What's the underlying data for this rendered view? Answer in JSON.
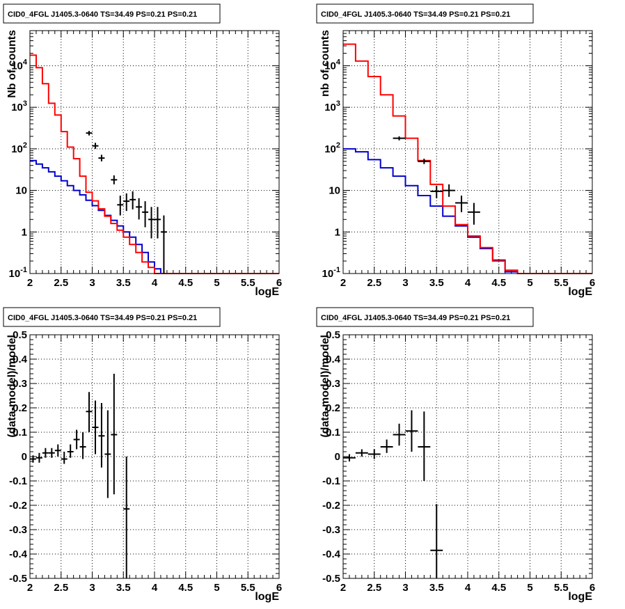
{
  "chart_data": [
    {
      "type": "histogram",
      "title": "CID0_4FGL J1405.3-0640 TS=34.49 PS=0.21 PS=0.21",
      "xlabel": "logE",
      "ylabel": "Nb of counts",
      "xlim": [
        2,
        6
      ],
      "ylim": [
        0.1,
        70000
      ],
      "yscale": "log",
      "grid": true,
      "x_ticks": [
        "2",
        "2.5",
        "3",
        "3.5",
        "4",
        "4.5",
        "5",
        "5.5",
        "6"
      ],
      "y_ticks": [
        "10^-1",
        "1",
        "10",
        "10^2",
        "10^3",
        "10^4"
      ],
      "colors": {
        "data": "#000000",
        "total_model": "#ff0000",
        "background_model": "#0000cc"
      },
      "bin_edges": [
        2.0,
        2.1,
        2.2,
        2.3,
        2.4,
        2.5,
        2.6,
        2.7,
        2.8,
        2.9,
        3.0,
        3.1,
        3.2,
        3.3,
        3.4,
        3.5,
        3.6,
        3.7,
        3.8,
        3.9,
        4.0,
        4.1,
        4.2,
        4.3,
        4.4,
        4.5,
        4.6,
        4.7,
        4.8,
        4.9,
        5.0,
        5.1,
        5.2,
        5.3,
        5.4,
        5.5,
        5.6,
        5.7,
        5.8,
        5.9,
        6.0
      ],
      "series": [
        {
          "role": "total_model",
          "values": [
            18000,
            9000,
            3700,
            1250,
            650,
            260,
            110,
            58,
            22,
            9,
            5.6,
            3.6,
            2.4,
            1.6,
            1.1,
            0.75,
            0.5,
            0.32,
            0.19,
            0.14,
            0.1,
            0.1,
            0.1,
            0.1,
            0.1,
            0.1,
            0.1,
            0.1,
            0.1,
            0.1,
            0.1,
            0.1,
            0.1,
            0.1,
            0.1,
            0.1,
            0.1,
            0.1,
            0.1,
            0.1
          ]
        },
        {
          "role": "background_model",
          "values": [
            52,
            43,
            35,
            28,
            22,
            17,
            13,
            10,
            7.8,
            5.8,
            4.3,
            3.3,
            2.5,
            1.9,
            1.4,
            1.0,
            0.75,
            0.5,
            0.32,
            0.19,
            0.13,
            0.1,
            0.1,
            0.1,
            0.1,
            0.1,
            0.1,
            0.1,
            0.1,
            0.1,
            0.1,
            0.1,
            0.1,
            0.1,
            0.1,
            0.1,
            0.1,
            0.1,
            0.1,
            0.1
          ]
        },
        {
          "role": "data",
          "points": [
            {
              "x": 2.95,
              "y": 240,
              "ylo": 210,
              "yhi": 270
            },
            {
              "x": 3.05,
              "y": 118,
              "ylo": 100,
              "yhi": 140
            },
            {
              "x": 3.15,
              "y": 60,
              "ylo": 50,
              "yhi": 72
            },
            {
              "x": 3.35,
              "y": 18,
              "ylo": 14,
              "yhi": 23
            },
            {
              "x": 3.45,
              "y": 4.5,
              "ylo": 2.5,
              "yhi": 7.5
            },
            {
              "x": 3.55,
              "y": 5.5,
              "ylo": 3.2,
              "yhi": 8.5
            },
            {
              "x": 3.65,
              "y": 6,
              "ylo": 3.5,
              "yhi": 9.5
            },
            {
              "x": 3.75,
              "y": 4,
              "ylo": 2,
              "yhi": 6.5
            },
            {
              "x": 3.85,
              "y": 3,
              "ylo": 1.3,
              "yhi": 5.5
            },
            {
              "x": 3.95,
              "y": 2,
              "ylo": 0.7,
              "yhi": 4
            },
            {
              "x": 4.05,
              "y": 2,
              "ylo": 0.7,
              "yhi": 4
            },
            {
              "x": 4.15,
              "y": 1,
              "ylo": 0.1,
              "yhi": 2.5
            }
          ]
        }
      ]
    },
    {
      "type": "histogram",
      "title": "CID0_4FGL J1405.3-0640 TS=34.49 PS=0.21 PS=0.21",
      "xlabel": "logE",
      "ylabel": "nb of counts",
      "xlim": [
        2,
        6
      ],
      "ylim": [
        0.1,
        70000
      ],
      "yscale": "log",
      "grid": true,
      "x_ticks": [
        "2",
        "2.5",
        "3",
        "3.5",
        "4",
        "4.5",
        "5",
        "5.5",
        "6"
      ],
      "y_ticks": [
        "10^-1",
        "1",
        "10",
        "10^2",
        "10^3",
        "10^4"
      ],
      "colors": {
        "data": "#000000",
        "total_model": "#ff0000",
        "background_model": "#0000cc"
      },
      "bin_edges": [
        2.0,
        2.2,
        2.4,
        2.6,
        2.8,
        3.0,
        3.2,
        3.4,
        3.6,
        3.8,
        4.0,
        4.2,
        4.4,
        4.6,
        4.8,
        5.0,
        5.2,
        5.4,
        5.6,
        5.8,
        6.0
      ],
      "series": [
        {
          "role": "total_model",
          "values": [
            33000,
            13000,
            5500,
            2000,
            620,
            180,
            52,
            14,
            4.2,
            1.5,
            0.8,
            0.42,
            0.2,
            0.12,
            0.1,
            0.1,
            0.1,
            0.1,
            0.1,
            0.1
          ]
        },
        {
          "role": "background_model",
          "values": [
            100,
            85,
            55,
            35,
            22,
            13,
            7.5,
            4.2,
            2.4,
            1.4,
            0.75,
            0.4,
            0.21,
            0.11,
            0.1,
            0.1,
            0.1,
            0.1,
            0.1,
            0.1
          ]
        },
        {
          "role": "data",
          "points": [
            {
              "x": 2.9,
              "y": 180,
              "ylo": 160,
              "yhi": 200
            },
            {
              "x": 3.3,
              "y": 50,
              "ylo": 43,
              "yhi": 58
            },
            {
              "x": 3.5,
              "y": 9.5,
              "ylo": 6.5,
              "yhi": 13
            },
            {
              "x": 3.7,
              "y": 10,
              "ylo": 7,
              "yhi": 14
            },
            {
              "x": 3.9,
              "y": 5,
              "ylo": 3,
              "yhi": 7.5
            },
            {
              "x": 4.1,
              "y": 3,
              "ylo": 1.5,
              "yhi": 5
            }
          ]
        }
      ]
    },
    {
      "type": "scatter",
      "title": "CID0_4FGL J1405.3-0640 TS=34.49 PS=0.21 PS=0.21",
      "xlabel": "logE",
      "ylabel": "(data-model)/model",
      "xlim": [
        2,
        6
      ],
      "ylim": [
        -0.5,
        0.5
      ],
      "grid": true,
      "x_ticks": [
        "2",
        "2.5",
        "3",
        "3.5",
        "4",
        "4.5",
        "5",
        "5.5",
        "6"
      ],
      "y_ticks": [
        "-0.5",
        "-0.4",
        "-0.3",
        "-0.2",
        "-0.1",
        "0",
        "0.1",
        "0.2",
        "0.3",
        "0.4",
        "0.5"
      ],
      "bin_halfwidth": 0.05,
      "points": [
        {
          "x": 2.05,
          "y": -0.01,
          "ylo": -0.025,
          "yhi": 0.005
        },
        {
          "x": 2.15,
          "y": -0.005,
          "ylo": -0.025,
          "yhi": 0.015
        },
        {
          "x": 2.25,
          "y": 0.015,
          "ylo": -0.005,
          "yhi": 0.035
        },
        {
          "x": 2.35,
          "y": 0.015,
          "ylo": -0.005,
          "yhi": 0.035
        },
        {
          "x": 2.45,
          "y": 0.025,
          "ylo": 0.0,
          "yhi": 0.05
        },
        {
          "x": 2.55,
          "y": -0.01,
          "ylo": -0.03,
          "yhi": 0.02
        },
        {
          "x": 2.65,
          "y": 0.02,
          "ylo": -0.005,
          "yhi": 0.05
        },
        {
          "x": 2.75,
          "y": 0.07,
          "ylo": 0.03,
          "yhi": 0.11
        },
        {
          "x": 2.85,
          "y": 0.04,
          "ylo": -0.01,
          "yhi": 0.1
        },
        {
          "x": 2.95,
          "y": 0.185,
          "ylo": 0.1,
          "yhi": 0.265
        },
        {
          "x": 3.05,
          "y": 0.12,
          "ylo": 0.01,
          "yhi": 0.23
        },
        {
          "x": 3.15,
          "y": 0.085,
          "ylo": -0.045,
          "yhi": 0.22
        },
        {
          "x": 3.25,
          "y": 0.01,
          "ylo": -0.17,
          "yhi": 0.19
        },
        {
          "x": 3.35,
          "y": 0.09,
          "ylo": -0.155,
          "yhi": 0.34
        },
        {
          "x": 3.55,
          "y": -0.215,
          "ylo": -0.5,
          "yhi": 0.0
        }
      ]
    },
    {
      "type": "scatter",
      "title": "CID0_4FGL J1405.3-0640 TS=34.49 PS=0.21 PS=0.21",
      "xlabel": "logE",
      "ylabel": "(data-model)/model",
      "xlim": [
        2,
        6
      ],
      "ylim": [
        -0.5,
        0.5
      ],
      "grid": true,
      "x_ticks": [
        "2",
        "2.5",
        "3",
        "3.5",
        "4",
        "4.5",
        "5",
        "5.5",
        "6"
      ],
      "y_ticks": [
        "-0.5",
        "-0.4",
        "-0.3",
        "-0.2",
        "-0.1",
        "0",
        "0.1",
        "0.2",
        "0.3",
        "0.4",
        "0.5"
      ],
      "bin_halfwidth": 0.1,
      "points": [
        {
          "x": 2.1,
          "y": -0.005,
          "ylo": -0.02,
          "yhi": 0.01
        },
        {
          "x": 2.3,
          "y": 0.015,
          "ylo": 0.0,
          "yhi": 0.03
        },
        {
          "x": 2.5,
          "y": 0.01,
          "ylo": -0.01,
          "yhi": 0.03
        },
        {
          "x": 2.7,
          "y": 0.04,
          "ylo": 0.015,
          "yhi": 0.07
        },
        {
          "x": 2.9,
          "y": 0.09,
          "ylo": 0.045,
          "yhi": 0.135
        },
        {
          "x": 3.1,
          "y": 0.105,
          "ylo": 0.02,
          "yhi": 0.19
        },
        {
          "x": 3.3,
          "y": 0.04,
          "ylo": -0.1,
          "yhi": 0.185
        },
        {
          "x": 3.5,
          "y": -0.385,
          "ylo": -0.5,
          "yhi": -0.195
        }
      ]
    }
  ]
}
